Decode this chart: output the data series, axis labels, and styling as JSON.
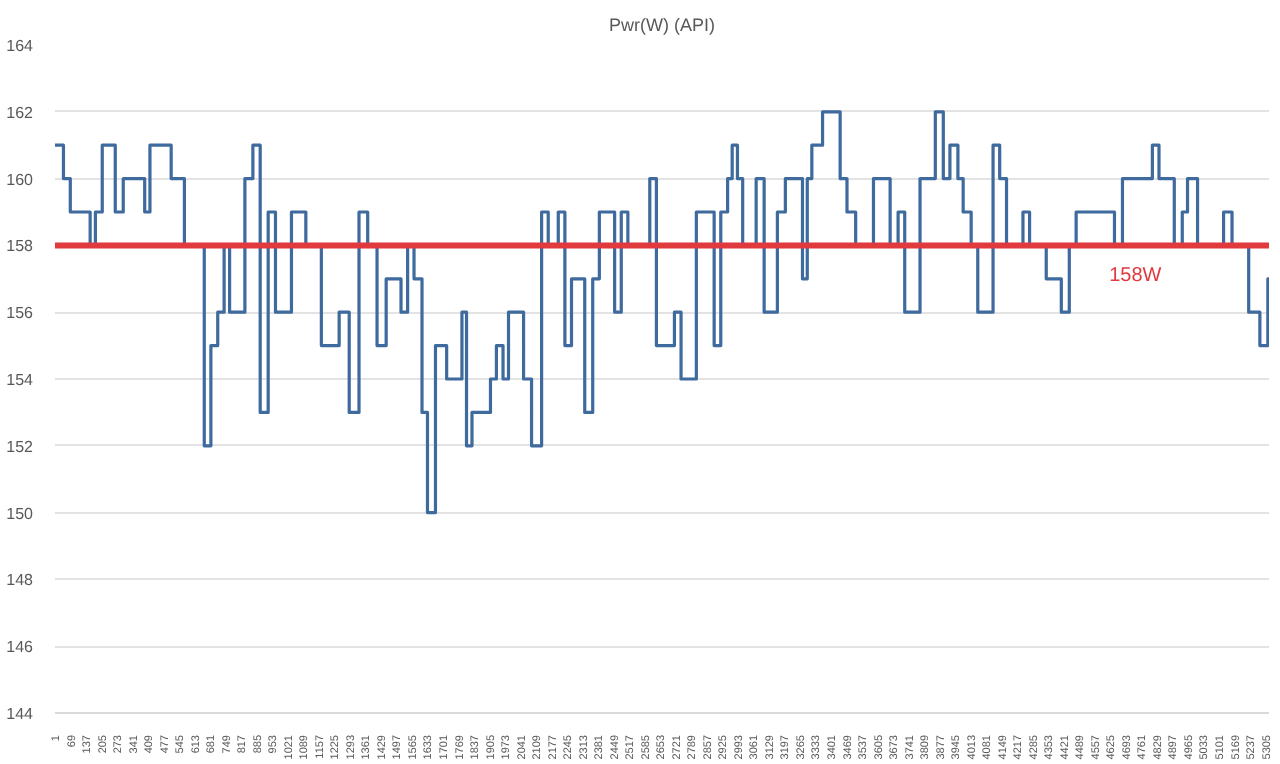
{
  "chart_data": {
    "type": "step",
    "title": "Pwr(W) (API)",
    "x": [
      1,
      38,
      68,
      155,
      178,
      208,
      265,
      300,
      394,
      417,
      510,
      568,
      655,
      684,
      714,
      742,
      766,
      833,
      868,
      900,
      935,
      967,
      1037,
      1100,
      1168,
      1246,
      1290,
      1333,
      1371,
      1412,
      1452,
      1517,
      1546,
      1574,
      1609,
      1633,
      1668,
      1717,
      1784,
      1804,
      1828,
      1909,
      1935,
      1964,
      1988,
      2054,
      2089,
      2133,
      2162,
      2206,
      2235,
      2264,
      2322,
      2357,
      2386,
      2453,
      2482,
      2511,
      2607,
      2636,
      2715,
      2744,
      2811,
      2889,
      2918,
      2948,
      2968,
      2991,
      3014,
      3073,
      3108,
      3166,
      3201,
      3276,
      3297,
      3317,
      3364,
      3441,
      3471,
      3509,
      3587,
      3660,
      3695,
      3724,
      3791,
      3858,
      3893,
      3922,
      3957,
      3980,
      4015,
      4044,
      4111,
      4140,
      4170,
      4242,
      4271,
      4344,
      4410,
      4445,
      4475,
      4643,
      4678,
      4809,
      4838,
      4905,
      4940,
      4963,
      5007,
      5121,
      5158,
      5231,
      5280,
      5315,
      5320
    ],
    "series": [
      {
        "color": "#3e6a9e",
        "values": [
          161,
          160,
          159,
          158,
          159,
          161,
          159,
          160,
          159,
          161,
          160,
          158,
          152,
          155,
          156,
          158,
          156,
          160,
          161,
          153,
          159,
          156,
          159,
          158,
          155,
          156,
          153,
          159,
          158,
          155,
          157,
          156,
          158,
          157,
          153,
          150,
          155,
          154,
          156,
          152,
          153,
          154,
          155,
          154,
          156,
          154,
          152,
          159,
          158,
          159,
          155,
          157,
          153,
          157,
          159,
          156,
          159,
          158,
          160,
          155,
          156,
          154,
          159,
          155,
          159,
          160,
          161,
          160,
          158,
          160,
          156,
          159,
          160,
          157,
          160,
          161,
          162,
          160,
          159,
          158,
          160,
          158,
          159,
          156,
          160,
          162,
          160,
          161,
          160,
          159,
          158,
          156,
          161,
          160,
          158,
          159,
          158,
          157,
          156,
          158,
          159,
          158,
          160,
          161,
          160,
          158,
          159,
          160,
          158,
          159,
          158,
          156,
          155,
          157,
          157
        ]
      }
    ],
    "xlim": [
      1,
      5320
    ],
    "xticks": [
      1,
      69,
      137,
      205,
      273,
      341,
      409,
      477,
      545,
      613,
      681,
      749,
      817,
      885,
      953,
      1021,
      1089,
      1157,
      1225,
      1293,
      1361,
      1429,
      1497,
      1565,
      1633,
      1701,
      1769,
      1837,
      1905,
      1973,
      2041,
      2109,
      2177,
      2245,
      2313,
      2381,
      2449,
      2517,
      2585,
      2653,
      2721,
      2789,
      2857,
      2925,
      2993,
      3061,
      3129,
      3197,
      3265,
      3333,
      3401,
      3469,
      3537,
      3605,
      3673,
      3741,
      3809,
      3877,
      3945,
      4013,
      4081,
      4149,
      4217,
      4285,
      4353,
      4421,
      4489,
      4557,
      4625,
      4693,
      4761,
      4829,
      4897,
      4965,
      5033,
      5101,
      5169,
      5237,
      5305
    ],
    "ylim": [
      144,
      164
    ],
    "yticks": [
      144,
      146,
      148,
      150,
      152,
      154,
      156,
      158,
      160,
      162,
      164
    ],
    "grid": "y",
    "ref_lines": [
      {
        "axis": "y",
        "value": 158,
        "label": "158W",
        "color": "#e0393e"
      }
    ]
  }
}
